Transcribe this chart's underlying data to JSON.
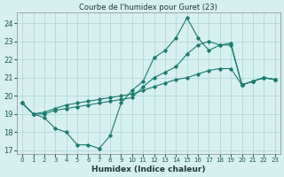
{
  "title": "Courbe de l'humidex pour Guret (23)",
  "xlabel": "Humidex (Indice chaleur)",
  "bg_color": "#d6f0f0",
  "grid_color": "#b0d8d8",
  "line_color": "#1a7a6e",
  "xlim": [
    -0.5,
    23.5
  ],
  "ylim": [
    16.8,
    24.6
  ],
  "yticks": [
    17,
    18,
    19,
    20,
    21,
    22,
    23,
    24
  ],
  "xticks": [
    0,
    1,
    2,
    3,
    4,
    5,
    6,
    7,
    8,
    9,
    10,
    11,
    12,
    13,
    14,
    15,
    16,
    17,
    18,
    19,
    20,
    21,
    22,
    23
  ],
  "series": [
    [
      19.6,
      19.0,
      18.8,
      18.2,
      18.0,
      17.3,
      17.3,
      17.1,
      17.8,
      19.6,
      20.3,
      20.8,
      22.1,
      22.5,
      23.2,
      24.3,
      23.2,
      22.5,
      22.8,
      22.8,
      20.6,
      20.8,
      21.0,
      20.9
    ],
    [
      19.6,
      19.0,
      19.0,
      19.2,
      19.3,
      19.4,
      19.5,
      19.6,
      19.7,
      19.8,
      19.9,
      20.5,
      21.0,
      21.3,
      21.6,
      22.3,
      22.8,
      23.0,
      22.8,
      22.9,
      20.6,
      20.8,
      21.0,
      20.9
    ],
    [
      19.6,
      19.0,
      19.1,
      19.3,
      19.5,
      19.6,
      19.7,
      19.8,
      19.9,
      20.0,
      20.1,
      20.3,
      20.5,
      20.7,
      20.9,
      21.0,
      21.2,
      21.4,
      21.5,
      21.5,
      20.6,
      20.8,
      21.0,
      20.9
    ]
  ]
}
